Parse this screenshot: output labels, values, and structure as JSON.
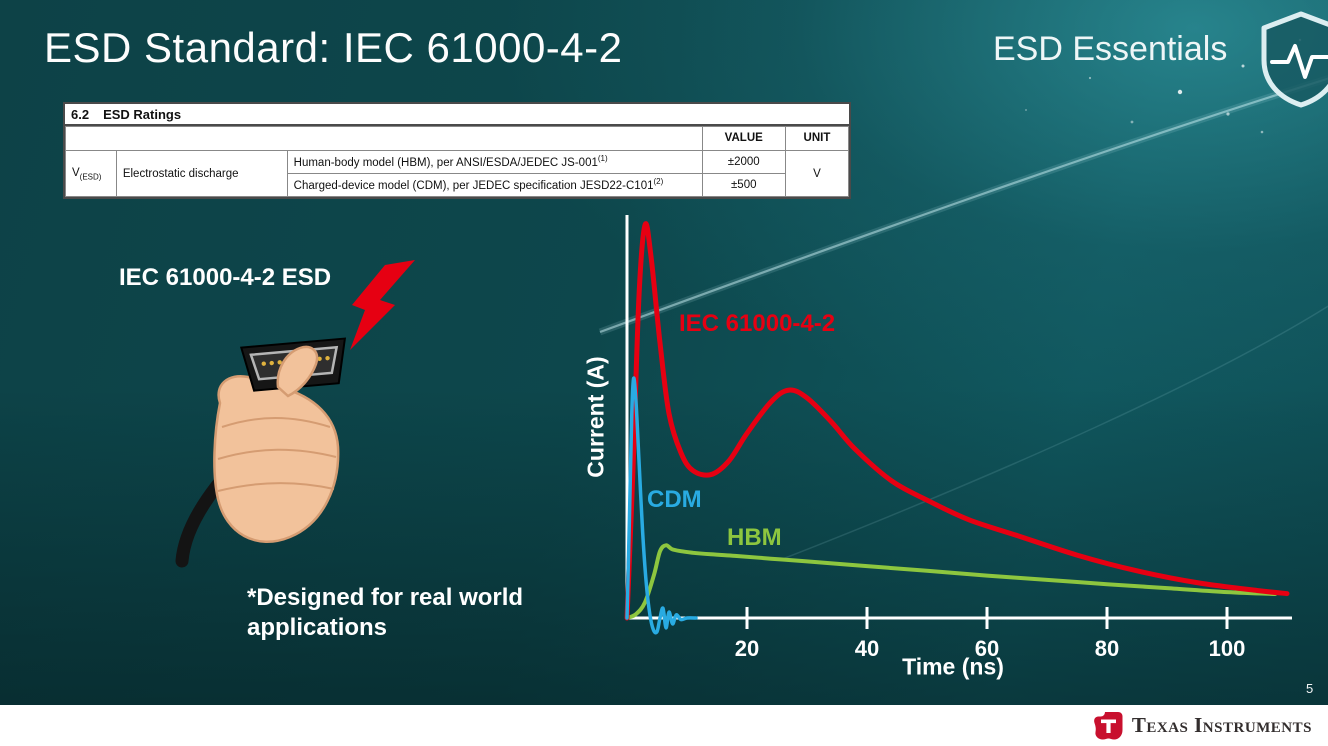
{
  "slide": {
    "title": "ESD Standard: IEC 61000-4-2",
    "series_label": "ESD Essentials",
    "page_number": "5"
  },
  "table": {
    "section": "6.2",
    "section_title": "ESD Ratings",
    "headers": {
      "value": "VALUE",
      "unit": "UNIT"
    },
    "param_symbol": "V",
    "param_sub": "(ESD)",
    "param_name": "Electrostatic discharge",
    "rows": [
      {
        "desc": "Human-body model (HBM), per ANSI/ESDA/JEDEC JS-001",
        "sup": "(1)",
        "value": "±2000"
      },
      {
        "desc": "Charged-device model (CDM), per JEDEC specification JESD22-C101",
        "sup": "(2)",
        "value": "±500"
      }
    ],
    "unit": "V"
  },
  "illustration": {
    "label": "IEC 61000-4-2 ESD",
    "caption": "*Designed for real world\napplications"
  },
  "footer": {
    "brand": "Texas Instruments"
  },
  "chart_data": {
    "type": "line",
    "title": "",
    "xlabel": "Time (ns)",
    "ylabel": "Current (A)",
    "xlim": [
      0,
      112
    ],
    "ylim": [
      -4,
      102
    ],
    "xticks": [
      20,
      40,
      60,
      80,
      100
    ],
    "yticks": [],
    "grid": false,
    "legend_position": "inline-labels",
    "series": [
      {
        "name": "HBM",
        "color": "#8dc63f",
        "width": 4,
        "x": [
          0,
          1.5,
          3,
          4.5,
          5.5,
          6.5,
          7.5,
          9,
          11,
          14,
          18,
          24,
          30,
          40,
          50,
          60,
          70,
          80,
          90,
          100,
          108
        ],
        "y": [
          0,
          1,
          4,
          11,
          17,
          18.5,
          17.5,
          17,
          16.6,
          16.2,
          15.8,
          15.1,
          14.4,
          13.2,
          12,
          10.8,
          9.7,
          8.6,
          7.6,
          6.6,
          6.1
        ]
      },
      {
        "name": "IEC 61000-4-2",
        "color": "#e60012",
        "width": 5,
        "x": [
          0,
          1,
          2,
          3,
          4,
          5.5,
          7,
          9,
          11,
          14,
          17,
          20,
          24,
          27,
          30,
          34,
          38,
          44,
          50,
          57,
          65,
          75,
          85,
          95,
          105,
          110
        ],
        "y": [
          0,
          38,
          82,
          100,
          92,
          70,
          52,
          42,
          37.5,
          36.5,
          40,
          47,
          55,
          58,
          56,
          50,
          43,
          35,
          30,
          25,
          21,
          16,
          12,
          9,
          7,
          6.2
        ]
      },
      {
        "name": "CDM",
        "color": "#29abe2",
        "width": 3.5,
        "x": [
          0,
          0.4,
          0.8,
          1.1,
          1.5,
          2,
          2.6,
          3.2,
          3.8,
          4.4,
          5,
          5.5,
          6,
          6.5,
          7,
          7.6,
          8.2,
          9,
          10,
          11.5
        ],
        "y": [
          0,
          25,
          52,
          61,
          55,
          40,
          22,
          9,
          1,
          -3,
          -3.5,
          0,
          2.5,
          -2.5,
          1.5,
          -1.5,
          0.8,
          -0.4,
          0,
          0
        ]
      }
    ]
  }
}
